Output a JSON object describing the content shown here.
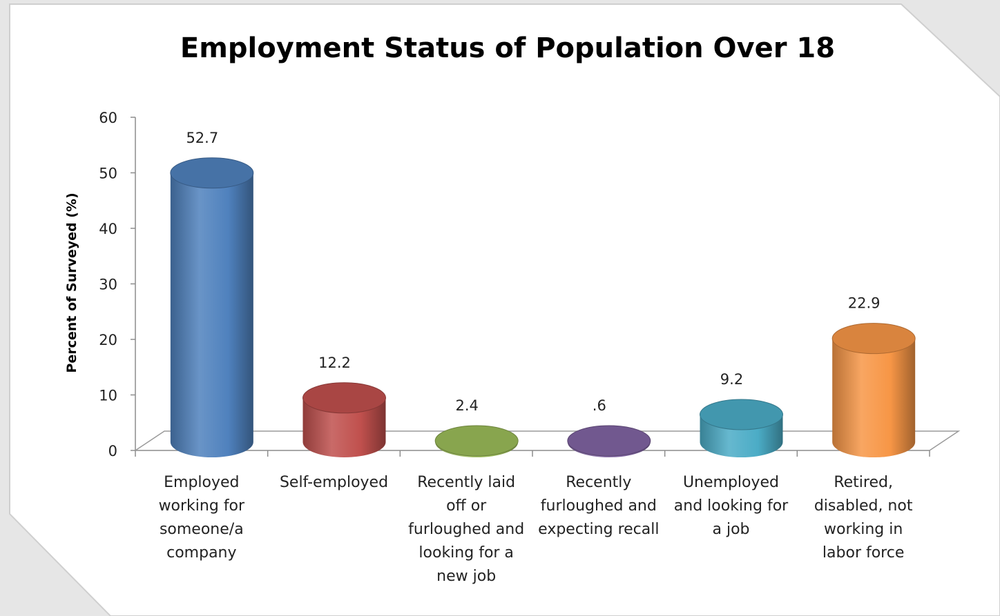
{
  "chart_data": {
    "type": "bar",
    "style": "3d-cylinder",
    "title": "Employment Status of Population Over 18",
    "xlabel": "",
    "ylabel": "Percent of Surveyed (%)",
    "ylim": [
      0,
      60
    ],
    "yticks": [
      0,
      10,
      20,
      30,
      40,
      50,
      60
    ],
    "grid": false,
    "legend": "none",
    "categories": [
      [
        "Employed",
        "working for",
        "someone/a",
        "company"
      ],
      [
        "Self-employed"
      ],
      [
        "Recently laid",
        "off or",
        "furloughed and",
        "looking for a",
        "new job"
      ],
      [
        "Recently",
        "furloughed and",
        "expecting recall"
      ],
      [
        "Unemployed",
        "and looking for",
        "a job"
      ],
      [
        "Retired,",
        "disabled, not",
        "working in",
        "labor force"
      ]
    ],
    "values": [
      52.7,
      12.2,
      2.4,
      0.6,
      9.2,
      22.9
    ],
    "data_labels": [
      "52.7",
      "12.2",
      "2.4",
      ".6",
      "9.2",
      "22.9"
    ],
    "colors": [
      "#4f81bd",
      "#c0504d",
      "#9bbb59",
      "#8064a2",
      "#4bacc6",
      "#f79646"
    ]
  }
}
